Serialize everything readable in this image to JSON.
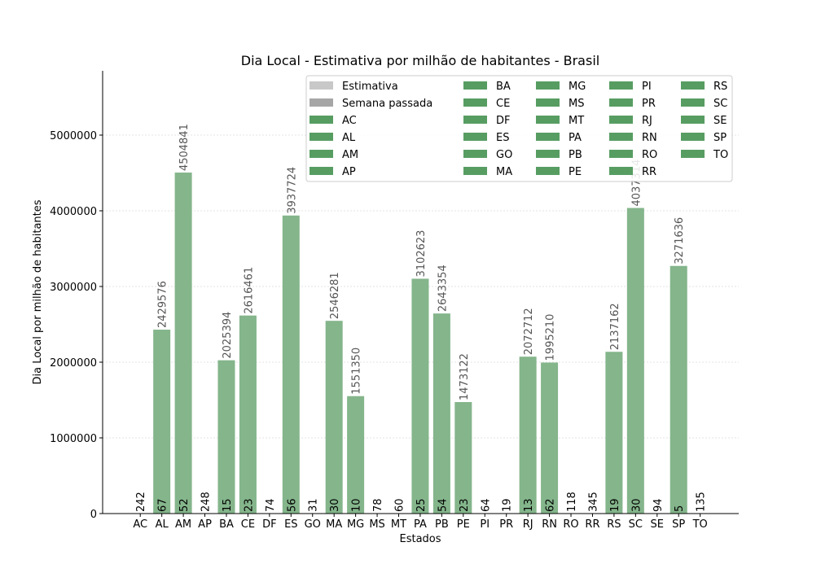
{
  "chart_data": {
    "type": "bar",
    "title": "Dia Local - Estimativa por milhão de habitantes - Brasil",
    "xlabel": "Estados",
    "ylabel": "Dia Local por milhão de habitantes",
    "ylim": [
      0,
      5850000
    ],
    "yticks": [
      "0",
      "1000000",
      "2000000",
      "3000000",
      "4000000",
      "5000000"
    ],
    "grid": "horizontal dashed",
    "legend_placement": "top-right",
    "categories": [
      "AC",
      "AL",
      "AM",
      "AP",
      "BA",
      "CE",
      "DF",
      "ES",
      "GO",
      "MA",
      "MG",
      "MS",
      "MT",
      "PA",
      "PB",
      "PE",
      "PI",
      "PR",
      "RJ",
      "RN",
      "RO",
      "RR",
      "RS",
      "SC",
      "SE",
      "SP",
      "TO"
    ],
    "values": [
      0,
      2429576,
      4504841,
      0,
      2025394,
      2616461,
      0,
      3937724,
      0,
      2546281,
      1551350,
      0,
      0,
      3102623,
      2643354,
      1473122,
      0,
      0,
      2072712,
      1995210,
      0,
      0,
      2137162,
      4037314,
      0,
      3271636,
      0
    ],
    "value_labels": [
      "",
      "2429576",
      "4504841",
      "",
      "2025394",
      "2616461",
      "",
      "3937724",
      "",
      "2546281",
      "1551350",
      "",
      "",
      "3102623",
      "2643354",
      "1473122",
      "",
      "",
      "2072712",
      "1995210",
      "",
      "",
      "2137162",
      "4037314",
      "",
      "3271636",
      ""
    ],
    "count_labels": [
      "242",
      "67",
      "52",
      "248",
      "15",
      "23",
      "74",
      "56",
      "31",
      "30",
      "10",
      "78",
      "60",
      "25",
      "54",
      "23",
      "64",
      "19",
      "13",
      "62",
      "118",
      "345",
      "19",
      "30",
      "94",
      "5",
      "135"
    ],
    "legend": {
      "entries": [
        {
          "label": "Estimativa",
          "color": "#c8c8c8"
        },
        {
          "label": "Semana passada",
          "color": "#a6a6a6"
        },
        {
          "label": "AC",
          "color": "#579d62"
        },
        {
          "label": "AL",
          "color": "#579d62"
        },
        {
          "label": "AM",
          "color": "#579d62"
        },
        {
          "label": "AP",
          "color": "#579d62"
        },
        {
          "label": "BA",
          "color": "#579d62"
        },
        {
          "label": "CE",
          "color": "#579d62"
        },
        {
          "label": "DF",
          "color": "#579d62"
        },
        {
          "label": "ES",
          "color": "#579d62"
        },
        {
          "label": "GO",
          "color": "#579d62"
        },
        {
          "label": "MA",
          "color": "#579d62"
        },
        {
          "label": "MG",
          "color": "#579d62"
        },
        {
          "label": "MS",
          "color": "#579d62"
        },
        {
          "label": "MT",
          "color": "#579d62"
        },
        {
          "label": "PA",
          "color": "#579d62"
        },
        {
          "label": "PB",
          "color": "#579d62"
        },
        {
          "label": "PE",
          "color": "#579d62"
        },
        {
          "label": "PI",
          "color": "#579d62"
        },
        {
          "label": "PR",
          "color": "#579d62"
        },
        {
          "label": "RJ",
          "color": "#579d62"
        },
        {
          "label": "RN",
          "color": "#579d62"
        },
        {
          "label": "RO",
          "color": "#579d62"
        },
        {
          "label": "RR",
          "color": "#579d62"
        },
        {
          "label": "RS",
          "color": "#579d62"
        },
        {
          "label": "SC",
          "color": "#579d62"
        },
        {
          "label": "SE",
          "color": "#579d62"
        },
        {
          "label": "SP",
          "color": "#579d62"
        },
        {
          "label": "TO",
          "color": "#579d62"
        }
      ]
    },
    "colors": {
      "bar": "#84b58b",
      "value_label": "#555555",
      "grid": "#c8c8c8"
    }
  }
}
